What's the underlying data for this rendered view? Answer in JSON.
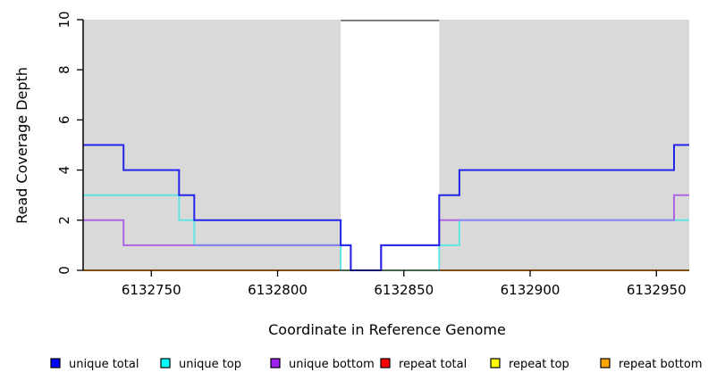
{
  "figure": {
    "xlabel": "Coordinate in Reference Genome",
    "ylabel": "Read Coverage Depth"
  },
  "chart_data": {
    "type": "line",
    "subtype": "step-coverage-plot",
    "title": "",
    "xlabel": "Coordinate in Reference Genome",
    "ylabel": "Read Coverage Depth",
    "xlim": [
      6132723,
      6132963
    ],
    "ylim": [
      0,
      10
    ],
    "x_ticks": [
      6132750,
      6132800,
      6132850,
      6132900,
      6132950
    ],
    "y_ticks": [
      0,
      2,
      4,
      6,
      8,
      10
    ],
    "plot_bg": "#d9d9d9",
    "highlight_region": {
      "x0": 6132825,
      "x1": 6132864,
      "color": "#ffffff",
      "top_border": "#808080"
    },
    "baseline_color": "#ff9a1e",
    "series": [
      {
        "id": "repeat-total",
        "label": "repeat total",
        "legend_color": "#ff0000",
        "line_color": "#ff2020",
        "steps": [
          [
            6132723,
            0
          ]
        ]
      },
      {
        "id": "repeat-top",
        "label": "repeat top",
        "legend_color": "#ffff00",
        "line_color": "#f0e020",
        "steps": [
          [
            6132723,
            0
          ]
        ]
      },
      {
        "id": "repeat-bottom",
        "label": "repeat bottom",
        "legend_color": "#ffa500",
        "line_color": "#ff9a1e",
        "steps": [
          [
            6132723,
            0
          ]
        ]
      },
      {
        "id": "unique-top",
        "label": "unique top",
        "legend_color": "#00ffff",
        "line_color": "#63e3e3",
        "steps": [
          [
            6132723,
            3
          ],
          [
            6132761,
            2
          ],
          [
            6132767,
            1
          ],
          [
            6132825,
            0
          ],
          [
            6132864,
            1
          ],
          [
            6132872,
            2
          ]
        ]
      },
      {
        "id": "unique-bottom",
        "label": "unique bottom",
        "legend_color": "#a020f0",
        "line_color": "#ad66e3",
        "steps": [
          [
            6132723,
            2
          ],
          [
            6132739,
            1
          ],
          [
            6132829,
            0
          ],
          [
            6132841,
            1
          ],
          [
            6132864,
            2
          ],
          [
            6132957,
            3
          ]
        ]
      },
      {
        "id": "unique-total",
        "label": "unique total",
        "legend_color": "#0000ff",
        "line_color": "#2424ea",
        "steps": [
          [
            6132723,
            5
          ],
          [
            6132739,
            4
          ],
          [
            6132761,
            3
          ],
          [
            6132767,
            2
          ],
          [
            6132825,
            1
          ],
          [
            6132829,
            0
          ],
          [
            6132841,
            1
          ],
          [
            6132864,
            3
          ],
          [
            6132872,
            4
          ],
          [
            6132957,
            5
          ]
        ]
      }
    ],
    "overlap_segments": [
      {
        "id": "gap-baseline-overlap",
        "level": 0,
        "x0": 6132825,
        "x1": 6132864,
        "color": "#95c9a5"
      },
      {
        "id": "top-bottom-overlap-left",
        "level": 1,
        "x0": 6132767,
        "x1": 6132825,
        "color": "#8282ef"
      },
      {
        "id": "top-bottom-overlap-right",
        "level": 2,
        "x0": 6132872,
        "x1": 6132957,
        "color": "#8f8ff0"
      }
    ],
    "legend": [
      {
        "label": "unique total",
        "color": "#0000ff"
      },
      {
        "label": "unique top",
        "color": "#00ffff"
      },
      {
        "label": "unique bottom",
        "color": "#a020f0"
      },
      {
        "label": "repeat total",
        "color": "#ff0000"
      },
      {
        "label": "repeat top",
        "color": "#ffff00"
      },
      {
        "label": "repeat bottom",
        "color": "#ffa500"
      }
    ],
    "legend_position": "bottom",
    "grid": false
  }
}
